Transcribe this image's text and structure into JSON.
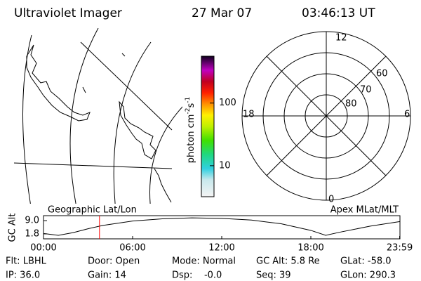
{
  "header": {
    "title": "Ultraviolet Imager",
    "date": "27 Mar 07",
    "time": "03:46:13 UT"
  },
  "colorbar": {
    "label": [
      "photon cm",
      "-2",
      "s",
      "-1"
    ],
    "log_scale": true,
    "lim": [
      3.2,
      560
    ],
    "ticks": [
      10,
      100
    ]
  },
  "polar": {
    "mlt_labels": [
      "12",
      "18",
      "6",
      "0"
    ],
    "lat_labels": [
      "60",
      "70",
      "80"
    ]
  },
  "chart_data": {
    "type": "line",
    "left_label": "Geographic Lat/Lon",
    "right_label": "Apex MLat/MLT",
    "ylabel": "GC Alt",
    "x": [
      0,
      1,
      2,
      3,
      4,
      6,
      8,
      10,
      12,
      14,
      16,
      18,
      19,
      20,
      22,
      24
    ],
    "values": [
      2.0,
      1.0,
      2.5,
      4.6,
      6.4,
      8.8,
      10.0,
      10.5,
      10.2,
      9.3,
      7.3,
      3.7,
      1.0,
      2.8,
      6.0,
      8.5
    ],
    "color": "#000000",
    "marker_x": 3.77,
    "marker_color": "#ff0000",
    "xlim": [
      0,
      24
    ],
    "ylim": [
      -0.9,
      11.7
    ],
    "xticks": [
      {
        "value": 0,
        "label": "00:00"
      },
      {
        "value": 6,
        "label": "06:00"
      },
      {
        "value": 12,
        "label": "12:00"
      },
      {
        "value": 18,
        "label": "18:00"
      },
      {
        "value": 23.98,
        "label": "23:59"
      }
    ],
    "yticks": [
      {
        "value": 9,
        "label": "9.0"
      },
      {
        "value": 1.8,
        "label": "1.8"
      }
    ]
  },
  "footer": {
    "rows": [
      [
        "Flt: LBHL",
        "Door: Open",
        "Mode: Normal",
        "GC Alt: 5.8 Re",
        "GLat: -58.0"
      ],
      [
        "IP: 36.0",
        "Gain: 14",
        "Dsp:    -0.0",
        "Seq: 39",
        "GLon: 290.3"
      ]
    ]
  }
}
